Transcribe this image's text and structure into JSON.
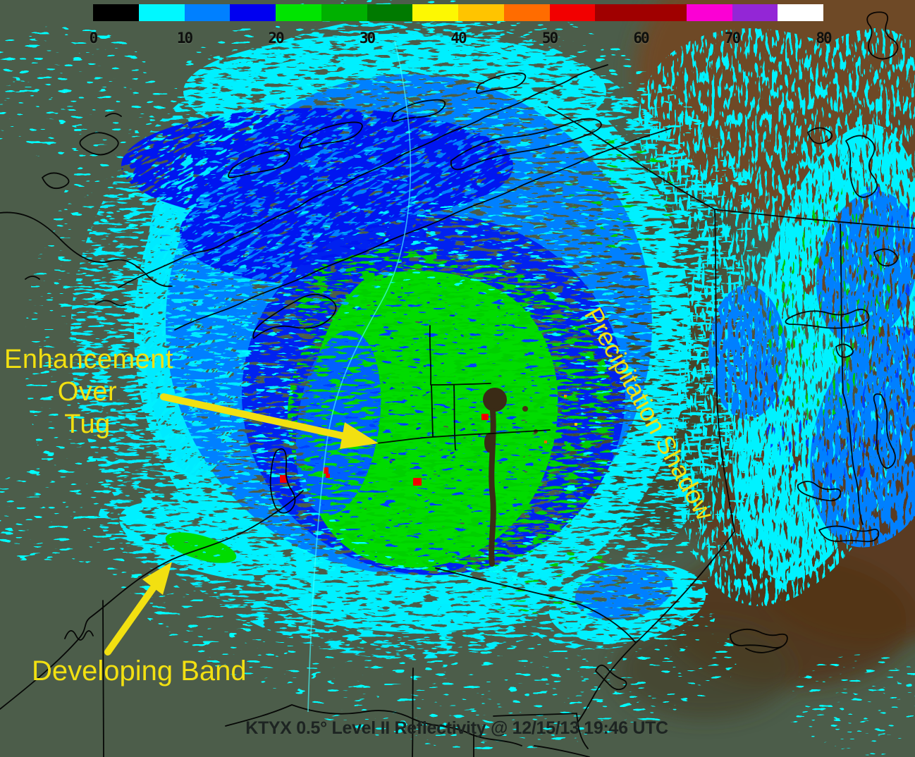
{
  "colorbar": {
    "tick_labels": [
      "0",
      "10",
      "20",
      "30",
      "40",
      "50",
      "60",
      "70",
      "80"
    ],
    "segments": [
      {
        "color": "#000000",
        "span": 1
      },
      {
        "color": "#00f8ff",
        "span": 1
      },
      {
        "color": "#0080ff",
        "span": 1
      },
      {
        "color": "#0000f0",
        "span": 1
      },
      {
        "color": "#00e400",
        "span": 1
      },
      {
        "color": "#00b000",
        "span": 1
      },
      {
        "color": "#007a00",
        "span": 1
      },
      {
        "color": "#fdf802",
        "span": 1
      },
      {
        "color": "#ffc400",
        "span": 1
      },
      {
        "color": "#ff6c00",
        "span": 1
      },
      {
        "color": "#f20000",
        "span": 1
      },
      {
        "color": "#a00000",
        "span": 2
      },
      {
        "color": "#fb00d4",
        "span": 1
      },
      {
        "color": "#9326d6",
        "span": 1
      },
      {
        "color": "#ffffff",
        "span": 1
      }
    ]
  },
  "annotations": {
    "color": "#f2e011",
    "enhancement": {
      "lines": [
        "Enhancement",
        "Over",
        "Tug"
      ]
    },
    "developing_band": "Developing Band",
    "precip_shadow": "Precipitation Shadow"
  },
  "caption": "KTYX 0.5° Level II Reflectivity @ 12/15/13 19:46 UTC"
}
